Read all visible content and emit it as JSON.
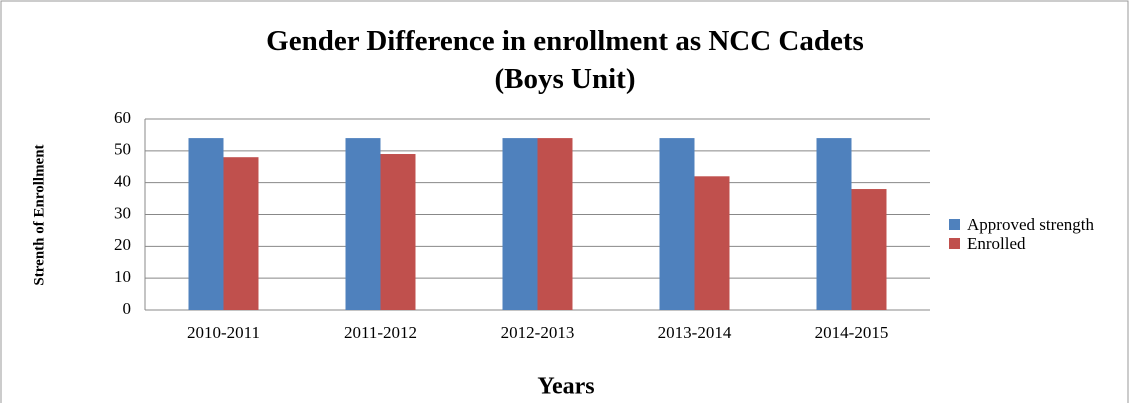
{
  "chart_data": {
    "type": "bar",
    "title": "Gender Difference in enrollment as NCC Cadets (Boys Unit)",
    "x_label": "Years",
    "y_label": "Strenth of Enrollment",
    "categories": [
      "2010-2011",
      "2011-2012",
      "2012-2013",
      "2013-2014",
      "2014-2015"
    ],
    "series": [
      {
        "name": "Approved strength",
        "color": "#4f81bd",
        "values": [
          54,
          54,
          54,
          54,
          54
        ]
      },
      {
        "name": "Enrolled",
        "color": "#c0504d",
        "values": [
          48,
          49,
          54,
          42,
          38
        ]
      }
    ],
    "ylim": [
      0,
      60
    ],
    "yticks": [
      0,
      10,
      20,
      30,
      40,
      50,
      60
    ],
    "grid": true,
    "legend": "right"
  }
}
